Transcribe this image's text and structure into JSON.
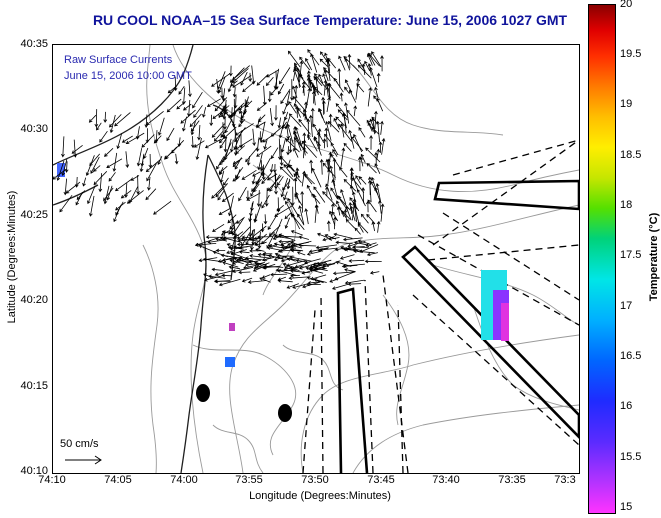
{
  "title": "RU COOL  NOAA–15  Sea Surface Temperature:  June 15, 2006 1027 GMT",
  "legend": {
    "line1": "Raw Surface Currents",
    "line2": "June 15, 2006 10:00 GMT"
  },
  "scale": {
    "label": "50 cm/s"
  },
  "axes": {
    "xlabel": "Longitude (Degrees:Minutes)",
    "ylabel": "Latitude (Degrees:Minutes)",
    "xticks": [
      "74:10",
      "74:05",
      "74:00",
      "73:55",
      "73:50",
      "73:45",
      "73:40",
      "73:35",
      "73:3"
    ],
    "yticks": [
      "40:35",
      "40:30",
      "40:25",
      "40:20",
      "40:15",
      "40:10"
    ]
  },
  "colorbar": {
    "label": "Temperature (°C)",
    "ticks": [
      "20",
      "19.5",
      "19",
      "18.5",
      "18",
      "17.5",
      "17",
      "16.5",
      "16",
      "15.5",
      "15"
    ],
    "range": [
      15,
      20
    ]
  },
  "colors": {
    "title": "#10149c",
    "legend_text": "#2a2ab0"
  }
}
